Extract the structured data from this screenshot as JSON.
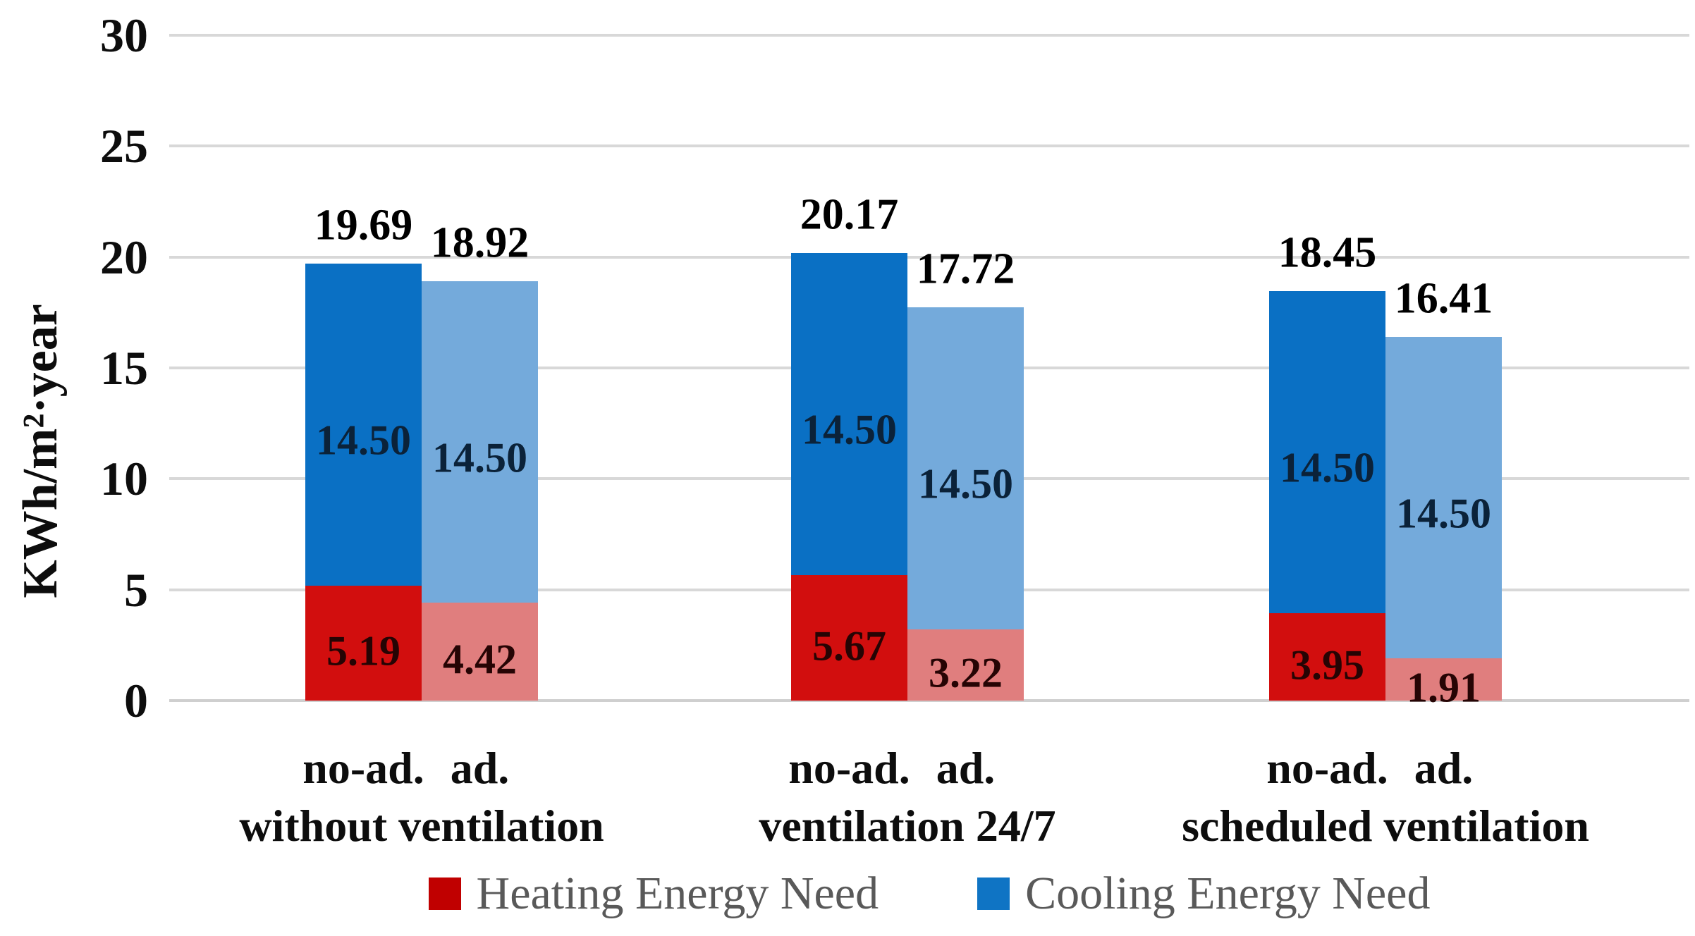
{
  "chart_data": {
    "type": "bar",
    "stacked": true,
    "ylabel": "KWh/m²·year",
    "ylim": [
      0,
      30
    ],
    "yticks": [
      0,
      5,
      10,
      15,
      20,
      25,
      30
    ],
    "grid": true,
    "legend_position": "bottom",
    "series_names": [
      "Heating Energy Need",
      "Cooling Energy Need"
    ],
    "groups": [
      {
        "label": "without ventilation",
        "bars": [
          {
            "label": "no-ad.",
            "variant": "dark",
            "heating": 5.19,
            "cooling": 14.5,
            "total": 19.69
          },
          {
            "label": "ad.",
            "variant": "light",
            "heating": 4.42,
            "cooling": 14.5,
            "total": 18.92
          }
        ]
      },
      {
        "label": "ventilation 24/7",
        "bars": [
          {
            "label": "no-ad.",
            "variant": "dark",
            "heating": 5.67,
            "cooling": 14.5,
            "total": 20.17
          },
          {
            "label": "ad.",
            "variant": "light",
            "heating": 3.22,
            "cooling": 14.5,
            "total": 17.72
          }
        ]
      },
      {
        "label": "scheduled ventilation",
        "bars": [
          {
            "label": "no-ad.",
            "variant": "dark",
            "heating": 3.95,
            "cooling": 14.5,
            "total": 18.45
          },
          {
            "label": "ad.",
            "variant": "light",
            "heating": 1.91,
            "cooling": 14.5,
            "total": 16.41
          }
        ]
      }
    ],
    "legend": [
      {
        "label": "Heating Energy Need",
        "color": "#C00000"
      },
      {
        "label": "Cooling Energy Need",
        "color": "#0F74C4"
      }
    ],
    "colors": {
      "heating_dark": "#D20E0E",
      "heating_light": "#E07E7E",
      "cooling_dark": "#0A70C4",
      "cooling_light": "#74AADB",
      "gridline": "#D8D8D8",
      "baseline": "#CFCFCF",
      "label_on_cooling": "#0B2239",
      "label_on_heating": "#260404",
      "total_label": "#000000",
      "legend_text": "#595959"
    }
  }
}
